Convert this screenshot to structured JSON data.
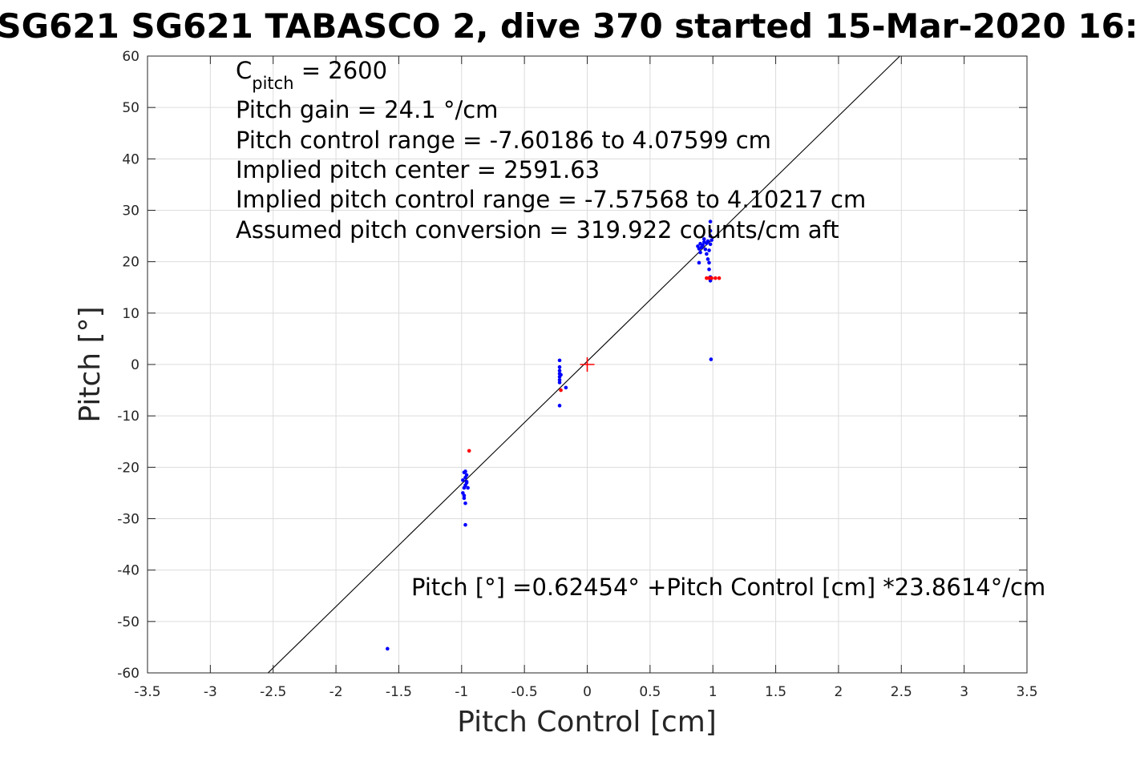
{
  "chart_data": {
    "type": "scatter",
    "title": "SG621 SG621 TABASCO 2, dive 370 started 15-Mar-2020 16:",
    "xlabel": "Pitch Control [cm]",
    "ylabel": "Pitch [°]",
    "xlim": [
      -3.5,
      3.5
    ],
    "ylim": [
      -60,
      60
    ],
    "grid": true,
    "x_ticks": [
      "-3.5",
      "-3",
      "-2.5",
      "-2",
      "-1.5",
      "-1",
      "-0.5",
      "0",
      "0.5",
      "1",
      "1.5",
      "2",
      "2.5",
      "3",
      "3.5"
    ],
    "y_ticks": [
      "60",
      "50",
      "40",
      "30",
      "20",
      "10",
      "0",
      "-10",
      "-20",
      "-30",
      "-40",
      "-50",
      "-60"
    ],
    "annotations": {
      "c_pitch_main": "C",
      "c_pitch_sub": "pitch",
      "c_pitch_value": " = 2600",
      "gain": "Pitch gain = 24.1 °/cm",
      "control_range": "Pitch control range = -7.60186 to 4.07599 cm",
      "implied_center": "Implied pitch center = 2591.63",
      "implied_range": "Implied pitch control range = -7.57568 to 4.10217 cm",
      "conversion": "Assumed pitch conversion = 319.922 counts/cm aft",
      "fit_equation": "Pitch [°] =0.62454° +Pitch Control [cm] *23.8614°/cm"
    },
    "fit_line": {
      "intercept": 0.62454,
      "slope": 23.8614,
      "color": "#000000"
    },
    "center_marker": {
      "x": 0,
      "y": 0,
      "color": "#ff0000"
    },
    "series": [
      {
        "color": "#0000ff",
        "points": [
          [
            0.88,
            23
          ],
          [
            0.89,
            22.5
          ],
          [
            0.9,
            23.5
          ],
          [
            0.91,
            22.8
          ],
          [
            0.92,
            23.2
          ],
          [
            0.93,
            23.8
          ],
          [
            0.94,
            22.4
          ],
          [
            0.95,
            23.6
          ],
          [
            0.96,
            24
          ],
          [
            0.97,
            22.2
          ],
          [
            0.98,
            23.4
          ],
          [
            0.99,
            24.2
          ],
          [
            0.9,
            21.8
          ],
          [
            0.95,
            21.5
          ],
          [
            0.96,
            20.5
          ],
          [
            0.97,
            19.8
          ],
          [
            0.97,
            18.5
          ],
          [
            0.98,
            17
          ],
          [
            0.98,
            16.3
          ],
          [
            0.98,
            26
          ],
          [
            0.98,
            25
          ],
          [
            0.98,
            27.8
          ],
          [
            0.89,
            19.8
          ],
          [
            0.93,
            24.4
          ],
          [
            0.985,
            1.0
          ],
          [
            -0.22,
            0.8
          ],
          [
            -0.22,
            -0.5
          ],
          [
            -0.22,
            -1.2
          ],
          [
            -0.22,
            -1.8
          ],
          [
            -0.22,
            -2.4
          ],
          [
            -0.22,
            -3
          ],
          [
            -0.22,
            -3.5
          ],
          [
            -0.21,
            -2
          ],
          [
            -0.17,
            -4.5
          ],
          [
            -0.22,
            -8
          ],
          [
            -0.98,
            -21
          ],
          [
            -0.97,
            -22
          ],
          [
            -0.96,
            -23
          ],
          [
            -0.99,
            -22.5
          ],
          [
            -0.98,
            -24
          ],
          [
            -0.97,
            -23.5
          ],
          [
            -0.96,
            -21.5
          ],
          [
            -0.95,
            -24
          ],
          [
            -0.99,
            -25
          ],
          [
            -0.98,
            -26
          ],
          [
            -0.97,
            -27
          ],
          [
            -0.98,
            -25.5
          ],
          [
            -0.97,
            -20.8
          ],
          [
            -0.96,
            -22.8
          ],
          [
            -0.97,
            -31.2
          ],
          [
            -1.59,
            -55.3
          ]
        ]
      },
      {
        "color": "#ff0000",
        "points": [
          [
            0.95,
            16.8
          ],
          [
            0.97,
            16.8
          ],
          [
            0.99,
            16.8
          ],
          [
            1.02,
            16.8
          ],
          [
            1.05,
            16.8
          ],
          [
            -0.94,
            -16.8
          ],
          [
            -0.21,
            -5
          ]
        ]
      }
    ]
  }
}
